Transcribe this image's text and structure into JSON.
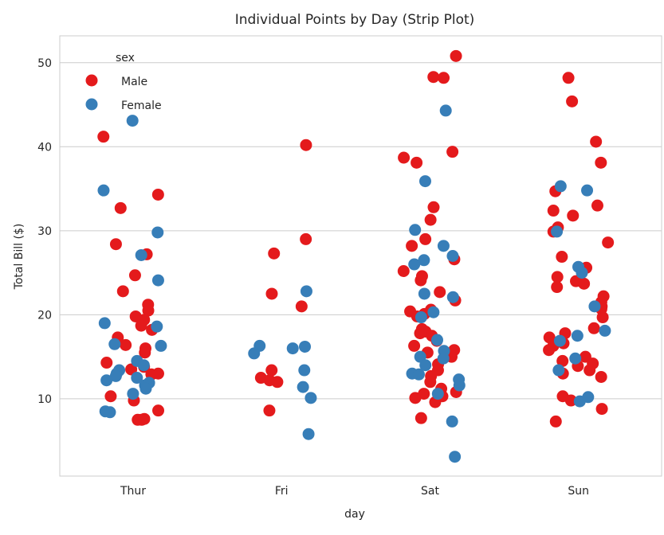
{
  "chart_data": {
    "type": "scatter",
    "subtype": "strip",
    "title": "Individual Points by Day (Strip Plot)",
    "xlabel": "day",
    "ylabel": "Total Bill ($)",
    "categories": [
      "Thur",
      "Fri",
      "Sat",
      "Sun"
    ],
    "ylim": [
      0.8,
      53.2
    ],
    "yticks": [
      10,
      20,
      30,
      40,
      50
    ],
    "grid": true,
    "legend": {
      "title": "sex",
      "placement": "top-left"
    },
    "series": [
      {
        "name": "Male",
        "color": "#e41a1c",
        "values": {
          "Thur": [
            41.2,
            34.3,
            32.7,
            28.4,
            27.2,
            24.7,
            22.8,
            21.2,
            20.5,
            19.8,
            19.4,
            18.7,
            18.2,
            17.3,
            16.4,
            16.0,
            15.5,
            14.3,
            13.8,
            13.5,
            13.0,
            12.9,
            10.3,
            9.8,
            8.6,
            7.6,
            7.5,
            7.5
          ],
          "Fri": [
            40.2,
            29.0,
            27.3,
            22.5,
            21.0,
            13.4,
            12.5,
            12.2,
            12.0,
            8.6
          ],
          "Sat": [
            50.8,
            48.3,
            48.2,
            39.4,
            38.7,
            38.1,
            32.8,
            31.3,
            29.0,
            28.2,
            26.6,
            25.2,
            24.6,
            24.1,
            22.7,
            21.7,
            20.6,
            20.4,
            20.1,
            19.8,
            18.3,
            18.0,
            17.8,
            17.5,
            16.9,
            16.3,
            15.8,
            15.5,
            15.0,
            14.1,
            13.4,
            12.7,
            12.0,
            11.2,
            10.8,
            10.6,
            10.3,
            10.1,
            9.6,
            7.7
          ],
          "Sun": [
            48.2,
            45.4,
            40.6,
            38.1,
            34.7,
            33.0,
            32.4,
            31.8,
            30.4,
            29.9,
            28.6,
            26.9,
            25.6,
            24.5,
            24.0,
            23.7,
            23.3,
            22.2,
            21.5,
            21.0,
            20.7,
            19.7,
            18.4,
            17.8,
            17.3,
            16.6,
            16.3,
            15.8,
            15.0,
            14.5,
            14.2,
            13.9,
            13.4,
            13.0,
            12.6,
            10.3,
            9.8,
            8.8,
            7.3
          ]
        }
      },
      {
        "name": "Female",
        "color": "#377eb8",
        "values": {
          "Thur": [
            43.1,
            34.8,
            29.8,
            27.1,
            24.1,
            19.0,
            18.6,
            16.5,
            16.3,
            14.5,
            14.0,
            13.4,
            13.0,
            12.7,
            12.5,
            12.2,
            11.9,
            11.6,
            11.2,
            10.6,
            8.5,
            8.4
          ],
          "Fri": [
            22.8,
            16.3,
            16.0,
            16.2,
            15.4,
            13.4,
            11.4,
            10.1,
            5.8
          ],
          "Sat": [
            44.3,
            35.9,
            30.1,
            28.2,
            27.0,
            26.5,
            26.0,
            22.5,
            22.1,
            20.3,
            19.7,
            17.0,
            15.7,
            15.0,
            14.8,
            14.0,
            13.0,
            12.9,
            12.3,
            11.6,
            10.6,
            7.3,
            3.1
          ],
          "Sun": [
            35.3,
            34.8,
            29.9,
            25.7,
            25.0,
            21.0,
            18.1,
            17.5,
            16.9,
            14.8,
            13.4,
            10.2,
            9.7
          ]
        }
      }
    ]
  }
}
